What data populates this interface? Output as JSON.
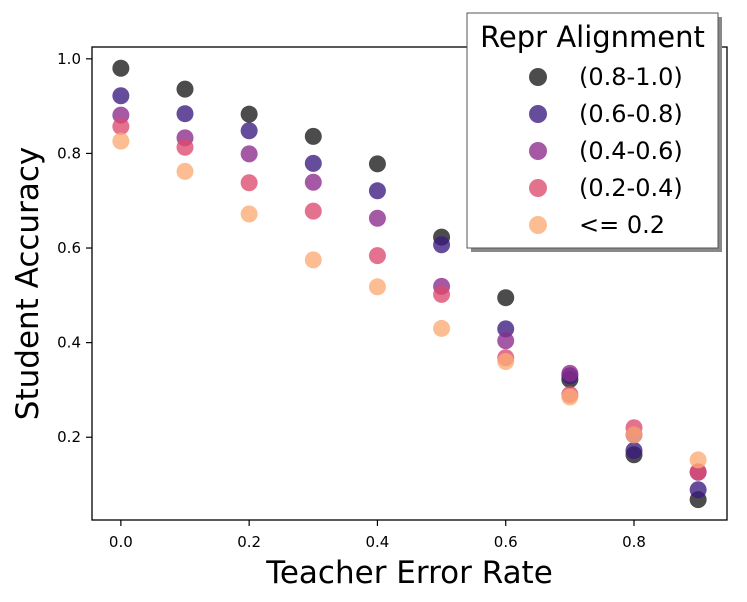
{
  "chart_data": {
    "type": "scatter",
    "xlabel": "Teacher Error Rate",
    "ylabel": "Student Accuracy",
    "xlim": [
      -0.045,
      0.945
    ],
    "ylim": [
      0.025,
      1.025
    ],
    "x_ticks": [
      0.0,
      0.2,
      0.4,
      0.6,
      0.8
    ],
    "x_tick_labels": [
      "0.0",
      "0.2",
      "0.4",
      "0.6",
      "0.8"
    ],
    "y_ticks": [
      0.2,
      0.4,
      0.6,
      0.8,
      1.0
    ],
    "y_tick_labels": [
      "0.2",
      "0.4",
      "0.6",
      "0.8",
      "1.0"
    ],
    "grid": false,
    "legend": {
      "title": "Repr Alignment",
      "placement": "top-right"
    },
    "x": [
      0.0,
      0.1,
      0.2,
      0.3,
      0.4,
      0.5,
      0.6,
      0.7,
      0.8,
      0.9
    ],
    "series": [
      {
        "name": "(0.8-1.0)",
        "color": "#1a1a1a",
        "values": [
          0.98,
          0.936,
          0.883,
          0.836,
          0.778,
          0.623,
          0.495,
          0.322,
          0.163,
          0.068
        ]
      },
      {
        "name": "(0.6-0.8)",
        "color": "#3b1b80",
        "values": [
          0.922,
          0.884,
          0.848,
          0.779,
          0.721,
          0.607,
          0.429,
          0.33,
          0.172,
          0.089
        ]
      },
      {
        "name": "(0.4-0.6)",
        "color": "#8c2a8c",
        "values": [
          0.881,
          0.833,
          0.799,
          0.739,
          0.663,
          0.519,
          0.404,
          0.335,
          0.205,
          0.126
        ]
      },
      {
        "name": "(0.2-0.4)",
        "color": "#dd4a6e",
        "values": [
          0.857,
          0.813,
          0.738,
          0.678,
          0.584,
          0.502,
          0.368,
          0.29,
          0.22,
          0.127
        ]
      },
      {
        "name": "<= 0.2",
        "color": "#fdaa75",
        "values": [
          0.826,
          0.762,
          0.672,
          0.575,
          0.518,
          0.43,
          0.36,
          0.285,
          0.205,
          0.152
        ]
      }
    ]
  }
}
